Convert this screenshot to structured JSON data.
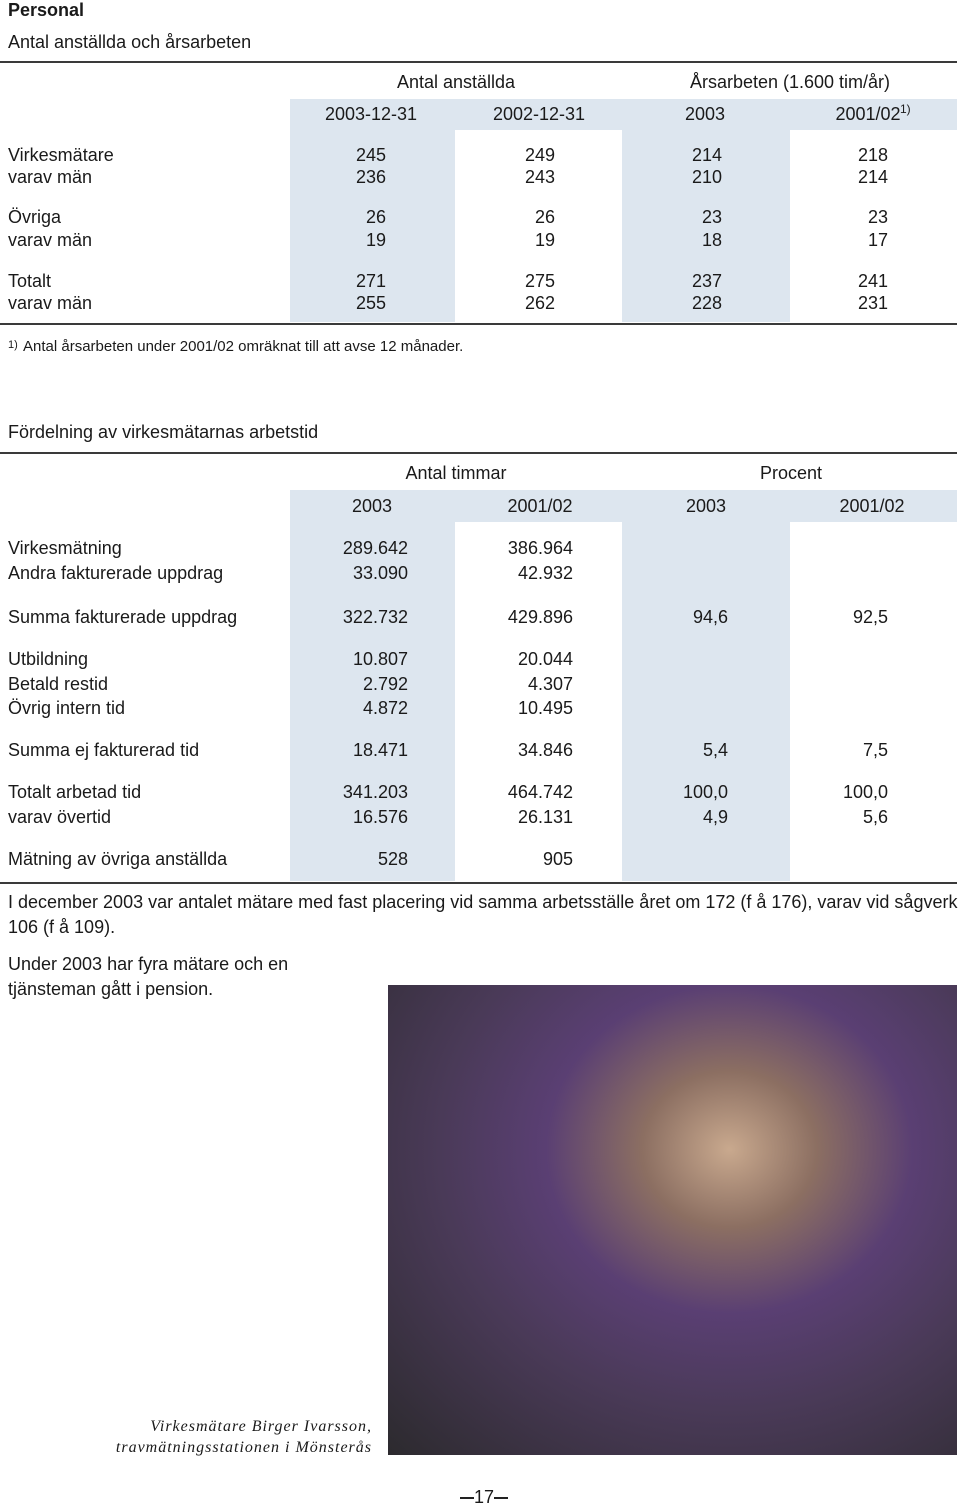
{
  "header": {
    "title": "Personal"
  },
  "table1": {
    "title": "Antal anställda och årsarbeten",
    "groups": [
      "Antal anställda",
      "Årsarbeten (1.600 tim/år)"
    ],
    "columns": [
      "2003-12-31",
      "2002-12-31",
      "2003",
      "2001/02"
    ],
    "column_note": "1)",
    "rows": [
      [
        "Virkesmätare",
        "245",
        "249",
        "214",
        "218"
      ],
      [
        "varav män",
        "236",
        "243",
        "210",
        "214"
      ],
      [
        "Övriga",
        "26",
        "26",
        "23",
        "23"
      ],
      [
        "varav män",
        "19",
        "19",
        "18",
        "17"
      ],
      [
        "Totalt",
        "271",
        "275",
        "237",
        "241"
      ],
      [
        "varav män",
        "255",
        "262",
        "228",
        "231"
      ]
    ],
    "footnote": {
      "mark": "1)",
      "text": "Antal årsarbeten under 2001/02 omräknat till att avse 12 månader."
    }
  },
  "table2": {
    "title": "Fördelning av virkesmätarnas arbetstid",
    "groups": [
      "Antal timmar",
      "Procent"
    ],
    "columns": [
      "2003",
      "2001/02",
      "2003",
      "2001/02"
    ],
    "rows": [
      [
        "Virkesmätning",
        "289.642",
        "386.964",
        null,
        null
      ],
      [
        "Andra fakturerade uppdrag",
        "33.090",
        "42.932",
        null,
        null
      ],
      [
        "Summa fakturerade uppdrag",
        "322.732",
        "429.896",
        "94,6",
        "92,5"
      ],
      [
        "Utbildning",
        "10.807",
        "20.044",
        null,
        null
      ],
      [
        "Betald restid",
        "2.792",
        "4.307",
        null,
        null
      ],
      [
        "Övrig intern tid",
        "4.872",
        "10.495",
        null,
        null
      ],
      [
        "Summa ej fakturerad tid",
        "18.471",
        "34.846",
        "5,4",
        "7,5"
      ],
      [
        "Totalt arbetad tid",
        "341.203",
        "464.742",
        "100,0",
        "100,0"
      ],
      [
        "varav övertid",
        "16.576",
        "26.131",
        "4,9",
        "5,6"
      ],
      [
        "Mätning av övriga anställda",
        "528",
        "905",
        null,
        null
      ]
    ]
  },
  "paragraphs": [
    "I december 2003 var antalet mätare med fast placering vid samma arbetsställe året om 172 (f å 176), varav vid sågverk 106 (f å 109).",
    "Under 2003 har fyra mätare och en tjänsteman gått i pension."
  ],
  "photo": {
    "caption": [
      "Virkesmätare Birger Ivarsson,",
      "travmätningsstationen i Mönsterås"
    ]
  },
  "footer": {
    "page": "17"
  }
}
